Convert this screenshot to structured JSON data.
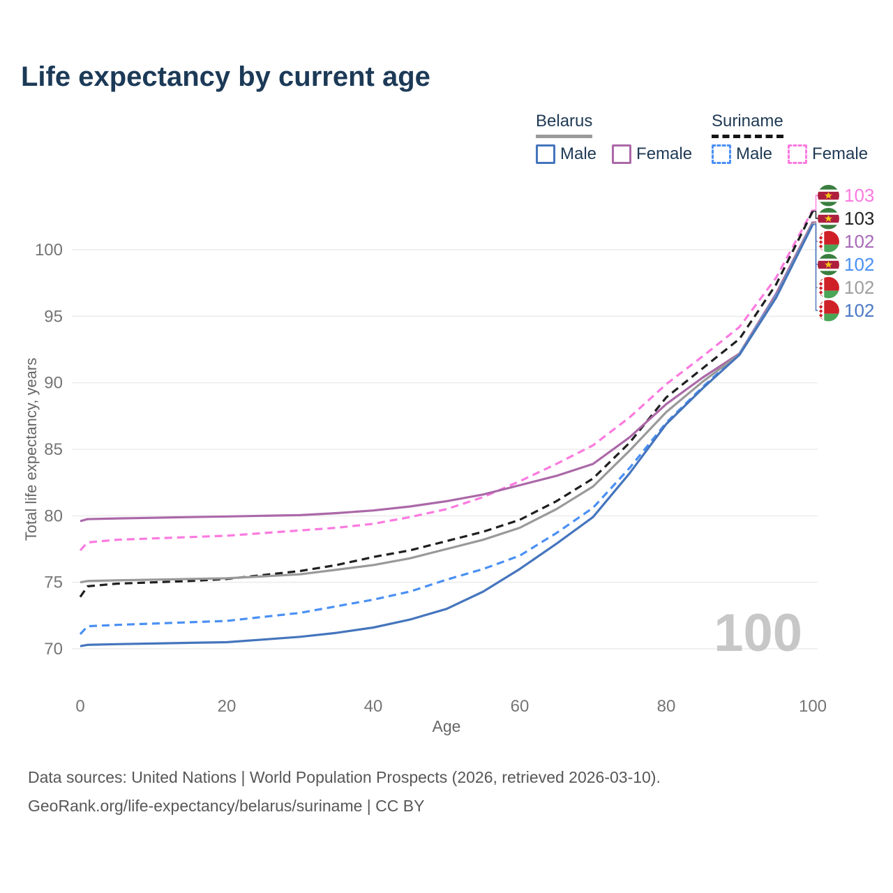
{
  "title": "Life expectancy by current age",
  "legend": {
    "groups": [
      {
        "name": "Belarus",
        "underline": "solid",
        "underline_color": "#9a9a9a",
        "items": [
          {
            "label": "Male",
            "color": "#4575bd",
            "dashed": false
          },
          {
            "label": "Female",
            "color": "#ab68a8",
            "dashed": false
          }
        ]
      },
      {
        "name": "Suriname",
        "underline": "dashed",
        "underline_color": "#151515",
        "items": [
          {
            "label": "Male",
            "color": "#4a90f4",
            "dashed": true
          },
          {
            "label": "Female",
            "color": "#fb7ae0",
            "dashed": true
          }
        ]
      }
    ]
  },
  "chart_data": {
    "type": "line",
    "title": "Life expectancy by current age",
    "xlabel": "Age",
    "ylabel": "Total life expectancy, years",
    "xlim": [
      0,
      100
    ],
    "ylim": [
      68.5,
      104
    ],
    "x_ticks": [
      0,
      20,
      40,
      60,
      80,
      100
    ],
    "y_ticks": [
      70,
      75,
      80,
      85,
      90,
      95,
      100
    ],
    "grid": "horizontal",
    "legend_position": "top-right",
    "watermark": "100",
    "series": [
      {
        "id": "suriname-female",
        "country": "Suriname",
        "sex": "Female",
        "style": "dashed",
        "color": "#fb7ae0",
        "points": [
          [
            0,
            77.4
          ],
          [
            1,
            78.0
          ],
          [
            5,
            78.2
          ],
          [
            10,
            78.3
          ],
          [
            15,
            78.4
          ],
          [
            20,
            78.5
          ],
          [
            25,
            78.7
          ],
          [
            30,
            78.9
          ],
          [
            35,
            79.1
          ],
          [
            40,
            79.4
          ],
          [
            45,
            79.9
          ],
          [
            50,
            80.5
          ],
          [
            55,
            81.4
          ],
          [
            60,
            82.6
          ],
          [
            65,
            83.9
          ],
          [
            70,
            85.3
          ],
          [
            75,
            87.4
          ],
          [
            80,
            89.9
          ],
          [
            85,
            92.0
          ],
          [
            90,
            94.2
          ],
          [
            95,
            97.9
          ],
          [
            100,
            103.0
          ]
        ]
      },
      {
        "id": "suriname-total",
        "country": "Suriname",
        "sex": "Both",
        "style": "dashed",
        "color": "#1f1f1f",
        "points": [
          [
            0,
            73.9
          ],
          [
            1,
            74.7
          ],
          [
            5,
            74.9
          ],
          [
            10,
            75.0
          ],
          [
            15,
            75.1
          ],
          [
            20,
            75.25
          ],
          [
            25,
            75.55
          ],
          [
            30,
            75.85
          ],
          [
            35,
            76.3
          ],
          [
            40,
            76.9
          ],
          [
            45,
            77.4
          ],
          [
            50,
            78.1
          ],
          [
            55,
            78.8
          ],
          [
            60,
            79.7
          ],
          [
            65,
            81.1
          ],
          [
            70,
            82.8
          ],
          [
            75,
            85.5
          ],
          [
            80,
            88.9
          ],
          [
            85,
            91.1
          ],
          [
            90,
            93.3
          ],
          [
            95,
            97.4
          ],
          [
            100,
            102.9
          ]
        ]
      },
      {
        "id": "belarus-female",
        "country": "Belarus",
        "sex": "Female",
        "style": "solid",
        "color": "#ab68a8",
        "points": [
          [
            0,
            79.6
          ],
          [
            1,
            79.75
          ],
          [
            5,
            79.8
          ],
          [
            10,
            79.85
          ],
          [
            15,
            79.9
          ],
          [
            20,
            79.95
          ],
          [
            25,
            80.0
          ],
          [
            30,
            80.05
          ],
          [
            35,
            80.2
          ],
          [
            40,
            80.4
          ],
          [
            45,
            80.7
          ],
          [
            50,
            81.1
          ],
          [
            55,
            81.6
          ],
          [
            60,
            82.3
          ],
          [
            65,
            83.0
          ],
          [
            70,
            83.9
          ],
          [
            75,
            85.9
          ],
          [
            80,
            88.4
          ],
          [
            85,
            90.4
          ],
          [
            90,
            92.2
          ],
          [
            95,
            96.7
          ],
          [
            100,
            102.1
          ]
        ]
      },
      {
        "id": "suriname-male",
        "country": "Suriname",
        "sex": "Male",
        "style": "dashed",
        "color": "#4a90f4",
        "points": [
          [
            0,
            71.1
          ],
          [
            1,
            71.7
          ],
          [
            5,
            71.8
          ],
          [
            10,
            71.9
          ],
          [
            15,
            72.0
          ],
          [
            20,
            72.1
          ],
          [
            25,
            72.4
          ],
          [
            30,
            72.7
          ],
          [
            35,
            73.2
          ],
          [
            40,
            73.7
          ],
          [
            45,
            74.3
          ],
          [
            50,
            75.2
          ],
          [
            55,
            76.0
          ],
          [
            60,
            77.0
          ],
          [
            65,
            78.7
          ],
          [
            70,
            80.6
          ],
          [
            75,
            83.6
          ],
          [
            80,
            87.0
          ],
          [
            85,
            89.7
          ],
          [
            90,
            92.2
          ],
          [
            95,
            96.6
          ],
          [
            100,
            102.0
          ]
        ]
      },
      {
        "id": "belarus-total",
        "country": "Belarus",
        "sex": "Both",
        "style": "solid",
        "color": "#999999",
        "points": [
          [
            0,
            75.0
          ],
          [
            1,
            75.1
          ],
          [
            5,
            75.15
          ],
          [
            10,
            75.2
          ],
          [
            15,
            75.25
          ],
          [
            20,
            75.3
          ],
          [
            25,
            75.45
          ],
          [
            30,
            75.6
          ],
          [
            35,
            75.95
          ],
          [
            40,
            76.3
          ],
          [
            45,
            76.8
          ],
          [
            50,
            77.5
          ],
          [
            55,
            78.2
          ],
          [
            60,
            79.1
          ],
          [
            65,
            80.5
          ],
          [
            70,
            82.2
          ],
          [
            75,
            84.9
          ],
          [
            80,
            87.8
          ],
          [
            85,
            90.1
          ],
          [
            90,
            92.15
          ],
          [
            95,
            96.5
          ],
          [
            100,
            102.0
          ]
        ]
      },
      {
        "id": "belarus-male",
        "country": "Belarus",
        "sex": "Male",
        "style": "solid",
        "color": "#4575bd",
        "points": [
          [
            0,
            70.2
          ],
          [
            1,
            70.3
          ],
          [
            5,
            70.35
          ],
          [
            10,
            70.4
          ],
          [
            15,
            70.45
          ],
          [
            20,
            70.5
          ],
          [
            25,
            70.7
          ],
          [
            30,
            70.9
          ],
          [
            35,
            71.2
          ],
          [
            40,
            71.6
          ],
          [
            45,
            72.2
          ],
          [
            50,
            73.0
          ],
          [
            55,
            74.3
          ],
          [
            60,
            76.0
          ],
          [
            65,
            77.9
          ],
          [
            70,
            79.9
          ],
          [
            75,
            83.2
          ],
          [
            80,
            86.9
          ],
          [
            85,
            89.6
          ],
          [
            90,
            92.1
          ],
          [
            95,
            96.4
          ],
          [
            100,
            101.9
          ]
        ]
      }
    ],
    "end_labels": [
      {
        "series": "suriname-female",
        "flag": "suriname",
        "text": "103",
        "color": "#fb7ae0"
      },
      {
        "series": "suriname-total",
        "flag": "suriname",
        "text": "103",
        "color": "#222222"
      },
      {
        "series": "belarus-female",
        "flag": "belarus",
        "text": "102",
        "color": "#a76ab8"
      },
      {
        "series": "suriname-male",
        "flag": "suriname",
        "text": "102",
        "color": "#4a90f4"
      },
      {
        "series": "belarus-total",
        "flag": "belarus",
        "text": "102",
        "color": "#9e9e9e"
      },
      {
        "series": "belarus-male",
        "flag": "belarus",
        "text": "102",
        "color": "#4a77c4"
      }
    ]
  },
  "colors": {
    "title": "#1c3a57",
    "grid": "#ebebeb",
    "tick_text": "#757575",
    "axis_title_text": "#666666",
    "watermark": "#c7c7c7",
    "legend_text": "#203a55"
  },
  "source": {
    "line1": "Data sources: United Nations | World Population Prospects (2026, retrieved 2026-03-10).",
    "line2": "GeoRank.org/life-expectancy/belarus/suriname | CC BY"
  }
}
